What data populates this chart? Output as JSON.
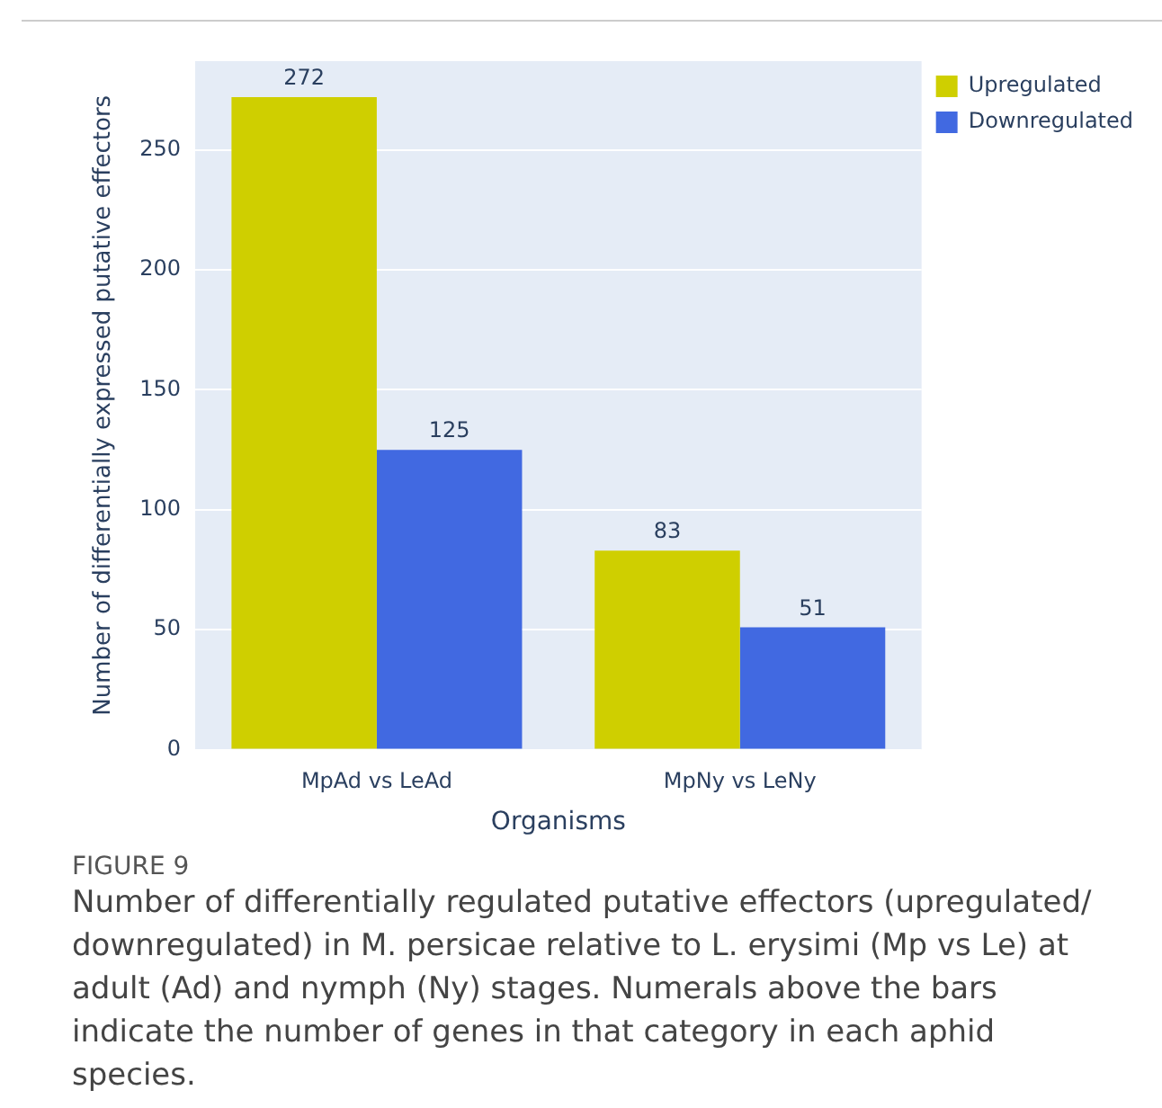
{
  "chart_data": {
    "type": "bar",
    "xlabel": "Organisms",
    "ylabel": "Number of differentially expressed putative effectors",
    "categories": [
      "MpAd vs LeAd",
      "MpNy vs LeNy"
    ],
    "series": [
      {
        "name": "Upregulated",
        "color": "#cfcf00",
        "values": [
          272,
          83
        ]
      },
      {
        "name": "Downregulated",
        "color": "#4169e1",
        "values": [
          125,
          51
        ]
      }
    ],
    "ylim": [
      0,
      287
    ],
    "yticks": [
      0,
      50,
      100,
      150,
      200,
      250
    ],
    "grid": "y",
    "legend": "top right",
    "data_labels": true,
    "annotations": [
      "FIGURE 9",
      "Number of differentially regulated putative effectors (upregulated/ downregulated) in M. persicae relative to L. erysimi (Mp vs Le) at adult (Ad) and nymph (Ny) stages. Numerals above the bars indicate the number of genes in that category in each aphid species."
    ]
  }
}
